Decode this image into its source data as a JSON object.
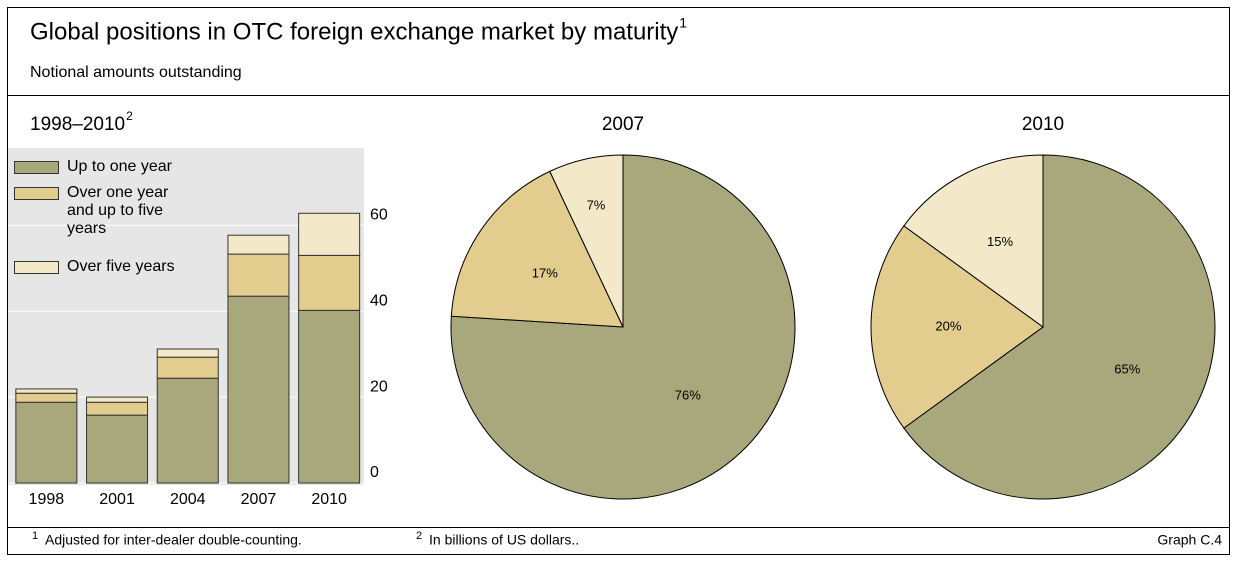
{
  "header": {
    "title": "Global positions in OTC foreign exchange market by maturity",
    "title_note": "1",
    "subtitle": "Notional amounts outstanding"
  },
  "chart_data": [
    {
      "type": "bar",
      "stacked": true,
      "title": "1998–2010",
      "title_note": "2",
      "categories": [
        "1998",
        "2001",
        "2004",
        "2007",
        "2010"
      ],
      "series": [
        {
          "name": "Up to one year",
          "color": "#a8a87c",
          "values": [
            18.8,
            15.8,
            24.4,
            43.5,
            40.2
          ]
        },
        {
          "name": "Over one year and up to five years",
          "color": "#e2cc8e",
          "values": [
            2.1,
            3.0,
            4.9,
            9.8,
            12.8
          ]
        },
        {
          "name": "Over five years",
          "color": "#f3e8c8",
          "values": [
            1.0,
            1.2,
            1.9,
            4.4,
            9.8
          ]
        }
      ],
      "ylim": [
        0,
        78
      ],
      "yticks": [
        0,
        20,
        40,
        60
      ],
      "grid": true,
      "y_axis_position": "right",
      "legend": "upper left"
    },
    {
      "type": "pie",
      "title": "2007",
      "values": [
        76,
        17,
        7
      ],
      "value_labels": [
        "76%",
        "17%",
        "7%"
      ],
      "colors": [
        "#a8a87c",
        "#e2cc8e",
        "#f3e8c8"
      ]
    },
    {
      "type": "pie",
      "title": "2010",
      "values": [
        65,
        20,
        15
      ],
      "value_labels": [
        "65%",
        "20%",
        "15%"
      ],
      "colors": [
        "#a8a87c",
        "#e2cc8e",
        "#f3e8c8"
      ]
    }
  ],
  "footnotes": [
    {
      "marker": "1",
      "text": "Adjusted for inter-dealer double-counting."
    },
    {
      "marker": "2",
      "text": "In billions of US dollars.."
    }
  ],
  "graph_label": "Graph C.4"
}
